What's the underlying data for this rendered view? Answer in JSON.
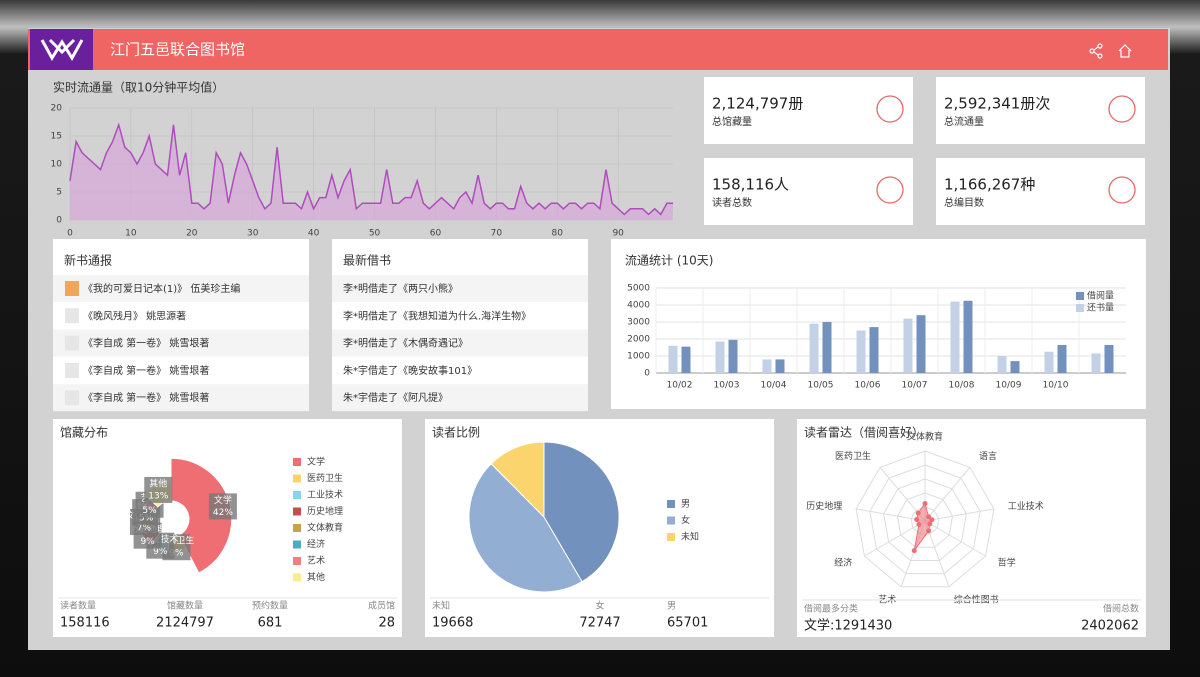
{
  "header": {
    "title": "江门五邑联合图书馆"
  },
  "stats": [
    {
      "value": "2,124,797册",
      "label": "总馆藏量"
    },
    {
      "value": "2,592,341册次",
      "label": "总流通量"
    },
    {
      "value": "158,116人",
      "label": "读者总数"
    },
    {
      "value": "1,166,267种",
      "label": "总编目数"
    }
  ],
  "new_books": {
    "title": "新书通报",
    "items": [
      "《我的可爱日记本(1)》 伍美珍主编",
      "《晚风残月》 姚思源著",
      "《李自成 第一卷》 姚雪垠著",
      "《李自成 第一卷》 姚雪垠著",
      "《李自成 第一卷》 姚雪垠著"
    ]
  },
  "latest_loans": {
    "title": "最新借书",
    "items": [
      "李*明借走了《两只小熊》",
      "李*明借走了《我想知道为什么.海洋生物》",
      "李*明借走了《木偶奇遇记》",
      "朱*宇借走了《晚安故事101》",
      "朱*宇借走了《阿凡提》"
    ]
  },
  "chart_data": [
    {
      "type": "line",
      "title": "实时流通量（取10分钟平均值）",
      "color": "#b04cbe",
      "fill": "#d7a9d8",
      "x": [
        0,
        1,
        2,
        3,
        4,
        5,
        6,
        7,
        8,
        9,
        10,
        11,
        12,
        13,
        14,
        15,
        16,
        17,
        18,
        19,
        20,
        21,
        22,
        23,
        24,
        25,
        26,
        27,
        28,
        29,
        30,
        31,
        32,
        33,
        34,
        35,
        36,
        37,
        38,
        39,
        40,
        41,
        42,
        43,
        44,
        45,
        46,
        47,
        48,
        49,
        50,
        51,
        52,
        53,
        54,
        55,
        56,
        57,
        58,
        59,
        60,
        61,
        62,
        63,
        64,
        65,
        66,
        67,
        68,
        69,
        70,
        71,
        72,
        73,
        74,
        75,
        76,
        77,
        78,
        79,
        80,
        81,
        82,
        83,
        84,
        85,
        86,
        87,
        88,
        89,
        90,
        91,
        92,
        93,
        94,
        95,
        96,
        97,
        98,
        99
      ],
      "values": [
        7,
        14,
        12,
        11,
        10,
        9,
        12,
        14,
        17,
        13,
        12,
        10,
        12,
        15,
        10,
        9,
        8,
        17,
        8,
        12,
        3,
        3,
        2,
        3,
        12,
        10,
        3,
        8,
        12,
        10,
        7,
        4,
        2,
        3,
        13,
        3,
        3,
        3,
        2,
        5,
        2,
        4,
        4,
        8,
        4,
        7,
        9,
        2,
        3,
        3,
        3,
        3,
        9,
        3,
        3,
        4,
        4,
        7,
        3,
        2,
        3,
        4,
        3,
        2,
        4,
        5,
        3,
        8,
        3,
        2,
        3,
        3,
        2,
        2,
        6,
        3,
        2,
        3,
        2,
        3,
        3,
        2,
        3,
        3,
        2,
        3,
        3,
        2,
        9,
        3,
        2,
        1,
        2,
        2,
        2,
        1,
        2,
        1,
        3,
        3
      ],
      "xlim": [
        0,
        99
      ],
      "xticks": [
        0,
        10,
        20,
        30,
        40,
        50,
        60,
        70,
        80,
        90
      ],
      "ylim": [
        0,
        20
      ],
      "yticks": [
        0,
        5,
        10,
        15,
        20
      ],
      "grid": true
    },
    {
      "type": "bar",
      "title": "流通统计 (10天)",
      "categories": [
        "10/02",
        "10/03",
        "10/04",
        "10/05",
        "10/06",
        "10/07",
        "10/08",
        "10/09",
        "10/10",
        null
      ],
      "series": [
        {
          "name": "借阅量",
          "color": "#7391bd",
          "values": [
            1550,
            1950,
            800,
            3000,
            2700,
            3400,
            4250,
            700,
            1650,
            1650
          ]
        },
        {
          "name": "还书量",
          "color": "#c3d1e6",
          "values": [
            1600,
            1850,
            800,
            2900,
            2500,
            3200,
            4200,
            1000,
            1250,
            1150
          ]
        }
      ],
      "ylim": [
        0,
        5000
      ],
      "yticks": [
        0,
        1000,
        2000,
        3000,
        4000,
        5000
      ],
      "grid": true
    },
    {
      "type": "pie",
      "title": "馆藏分布",
      "categories": [
        "文学",
        "医药卫生",
        "工业技术",
        "历史地理",
        "文体教育",
        "经济",
        "艺术",
        "其他"
      ],
      "values": [
        42,
        9,
        9,
        9,
        7,
        5,
        5,
        13
      ],
      "value_labels": [
        "42%",
        "9%",
        "9%",
        "9%",
        "7%",
        "5%",
        "5%",
        "13%"
      ],
      "colors": [
        "#ee6e73",
        "#f7d56a",
        "#85d4f0",
        "#c0504d",
        "#c7a252",
        "#4faac2",
        "#f08080",
        "#fbee89"
      ]
    },
    {
      "type": "pie",
      "title": "读者比例",
      "categories": [
        "男",
        "女",
        "未知"
      ],
      "values": [
        65701,
        72747,
        19668
      ],
      "colors": [
        "#7391bd",
        "#92aed3",
        "#fbd46d"
      ]
    },
    {
      "type": "radar",
      "title": "读者雷达（借阅喜好）",
      "categories": [
        "文体教育",
        "语言",
        "工业技术",
        "哲学",
        "综合性图书",
        "艺术",
        "经济",
        "历史地理",
        "医药卫生"
      ],
      "values": [
        25,
        8,
        10,
        8,
        15,
        45,
        10,
        12,
        15
      ],
      "ylim": [
        0,
        100
      ],
      "color": "#ee6e73"
    }
  ],
  "collection_footer": [
    {
      "label": "读者数量",
      "value": 158116
    },
    {
      "label": "馆藏数量",
      "value": 2124797
    },
    {
      "label": "预约数量",
      "value": 681
    },
    {
      "label": "成员馆",
      "value": 28
    }
  ],
  "radar_footer": {
    "top_label": "借阅最多分类",
    "top_value": "文学:1291430",
    "total_label": "借阅总数",
    "total_value": 2402062
  }
}
